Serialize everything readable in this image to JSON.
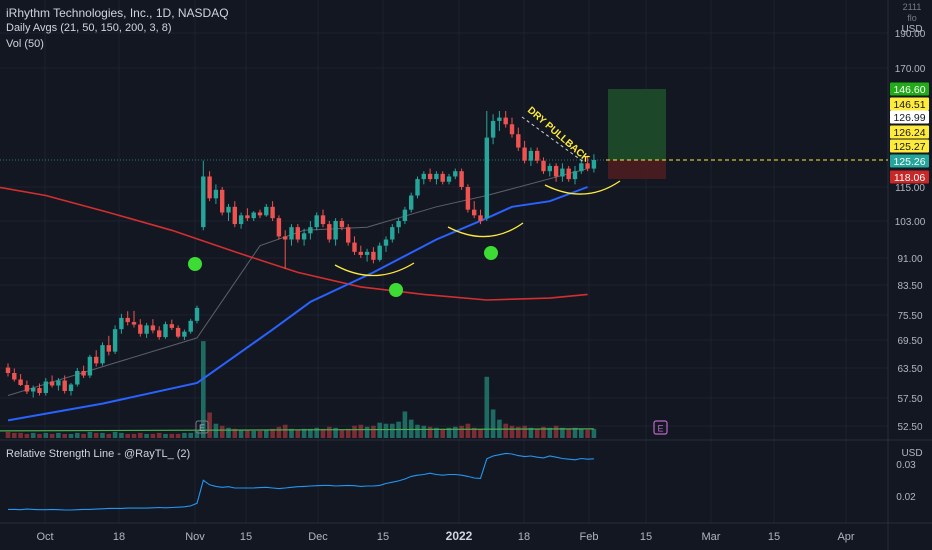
{
  "header": {
    "symbol_line": "iRhythm Technologies, Inc., 1D, NASDAQ",
    "indicator_ma": "Daily Avgs (21, 50, 150, 200, 3, 8)",
    "indicator_vol": "Vol (50)",
    "lower_pane_title": "Relative Strength Line - @RayTL_ (2)"
  },
  "price_axis": {
    "currency_top": [
      "2111 flo",
      "USD"
    ],
    "currency_bottom": "USD",
    "ticks": [
      "190.00",
      "170.00",
      "115.00",
      "103.00",
      "91.00",
      "83.50",
      "75.50",
      "69.50",
      "63.50",
      "57.50",
      "52.50"
    ],
    "lower_ticks": [
      "0.03",
      "0.02"
    ]
  },
  "price_tags": [
    {
      "label": "146.60",
      "bg": "#22ab18",
      "fg": "#ffffff"
    },
    {
      "label": "146.51",
      "bg": "#ffeb3b",
      "fg": "#131722"
    },
    {
      "label": "126.99",
      "bg": "#ffffff",
      "fg": "#131722"
    },
    {
      "label": "126.24",
      "bg": "#ffeb3b",
      "fg": "#131722"
    },
    {
      "label": "125.27",
      "bg": "#ffeb3b",
      "fg": "#131722"
    },
    {
      "label": "125.26",
      "bg": "#26a69a",
      "fg": "#ffffff"
    },
    {
      "label": "118.06",
      "bg": "#c62828",
      "fg": "#ffffff"
    }
  ],
  "time_axis": {
    "labels": [
      {
        "text": "Oct",
        "bold": false
      },
      {
        "text": "18",
        "bold": false
      },
      {
        "text": "Nov",
        "bold": false
      },
      {
        "text": "15",
        "bold": false
      },
      {
        "text": "Dec",
        "bold": false
      },
      {
        "text": "15",
        "bold": false
      },
      {
        "text": "2022",
        "bold": true
      },
      {
        "text": "18",
        "bold": false
      },
      {
        "text": "Feb",
        "bold": false
      },
      {
        "text": "15",
        "bold": false
      },
      {
        "text": "Mar",
        "bold": false
      },
      {
        "text": "15",
        "bold": false
      },
      {
        "text": "Apr",
        "bold": false
      }
    ]
  },
  "annotations": {
    "pullback_text": "DRY PULLBACK",
    "earnings_marker": "E"
  },
  "colors": {
    "background": "#131722",
    "up": "#26a69a",
    "down": "#ef5350",
    "ma50": "#2962ff",
    "ma200": "#d32f2f",
    "ma21": "#5d606b",
    "rs_line": "#2196f3",
    "volume_ma": "#4caf50",
    "marker": "#3ddc35",
    "arc": "#ffeb3b",
    "target_zone": "#1e4a2a",
    "stop_zone": "#4a1c22"
  },
  "chart_data": {
    "type": "candlestick",
    "symbol": "iRhythm Technologies, Inc.",
    "interval": "1D",
    "exchange": "NASDAQ",
    "ylim": [
      50,
      200
    ],
    "xlabels": [
      "Oct",
      "18",
      "Nov",
      "15",
      "Dec",
      "15",
      "2022",
      "18",
      "Feb",
      "15",
      "Mar",
      "15",
      "Apr"
    ],
    "candles": [
      {
        "o": 63.6,
        "h": 64.5,
        "l": 61.8,
        "c": 62.5
      },
      {
        "o": 62.5,
        "h": 63.4,
        "l": 60.8,
        "c": 61.2
      },
      {
        "o": 61.2,
        "h": 62.3,
        "l": 59.9,
        "c": 60.1
      },
      {
        "o": 60.1,
        "h": 61.0,
        "l": 58.3,
        "c": 58.8
      },
      {
        "o": 58.8,
        "h": 60.0,
        "l": 57.6,
        "c": 59.5
      },
      {
        "o": 59.5,
        "h": 60.4,
        "l": 58.0,
        "c": 58.5
      },
      {
        "o": 58.5,
        "h": 61.5,
        "l": 58.0,
        "c": 60.8
      },
      {
        "o": 60.8,
        "h": 62.0,
        "l": 59.6,
        "c": 60.0
      },
      {
        "o": 60.0,
        "h": 61.5,
        "l": 59.0,
        "c": 61.0
      },
      {
        "o": 61.0,
        "h": 62.0,
        "l": 58.4,
        "c": 58.9
      },
      {
        "o": 58.9,
        "h": 60.5,
        "l": 58.0,
        "c": 60.2
      },
      {
        "o": 60.2,
        "h": 63.5,
        "l": 59.8,
        "c": 62.9
      },
      {
        "o": 62.9,
        "h": 64.0,
        "l": 61.5,
        "c": 62.0
      },
      {
        "o": 62.0,
        "h": 66.3,
        "l": 61.5,
        "c": 65.9
      },
      {
        "o": 65.9,
        "h": 67.3,
        "l": 63.8,
        "c": 64.5
      },
      {
        "o": 64.5,
        "h": 69.0,
        "l": 64.0,
        "c": 68.4
      },
      {
        "o": 68.4,
        "h": 70.5,
        "l": 66.2,
        "c": 67.0
      },
      {
        "o": 67.0,
        "h": 73.0,
        "l": 66.5,
        "c": 72.1
      },
      {
        "o": 72.1,
        "h": 75.8,
        "l": 71.0,
        "c": 74.8
      },
      {
        "o": 74.8,
        "h": 76.5,
        "l": 73.0,
        "c": 73.8
      },
      {
        "o": 73.8,
        "h": 76.6,
        "l": 72.5,
        "c": 73.2
      },
      {
        "o": 73.2,
        "h": 74.5,
        "l": 70.3,
        "c": 71.0
      },
      {
        "o": 71.0,
        "h": 73.6,
        "l": 70.0,
        "c": 73.0
      },
      {
        "o": 73.0,
        "h": 74.5,
        "l": 71.1,
        "c": 71.8
      },
      {
        "o": 71.8,
        "h": 72.8,
        "l": 69.6,
        "c": 70.2
      },
      {
        "o": 70.2,
        "h": 73.9,
        "l": 69.8,
        "c": 73.3
      },
      {
        "o": 73.3,
        "h": 74.4,
        "l": 71.9,
        "c": 72.4
      },
      {
        "o": 72.4,
        "h": 73.0,
        "l": 69.9,
        "c": 70.3
      },
      {
        "o": 70.3,
        "h": 72.0,
        "l": 69.5,
        "c": 71.5
      },
      {
        "o": 71.5,
        "h": 74.6,
        "l": 71.0,
        "c": 74.1
      },
      {
        "o": 74.1,
        "h": 78.0,
        "l": 73.5,
        "c": 77.4
      },
      {
        "o": 101.0,
        "h": 125.0,
        "l": 100.0,
        "c": 119.0
      },
      {
        "o": 119.0,
        "h": 121.0,
        "l": 110.0,
        "c": 111.0
      },
      {
        "o": 111.0,
        "h": 116.0,
        "l": 109.0,
        "c": 114.0
      },
      {
        "o": 114.0,
        "h": 115.0,
        "l": 105.0,
        "c": 106.0
      },
      {
        "o": 106.0,
        "h": 109.0,
        "l": 103.0,
        "c": 108.0
      },
      {
        "o": 108.0,
        "h": 110.0,
        "l": 101.0,
        "c": 102.0
      },
      {
        "o": 102.0,
        "h": 106.0,
        "l": 100.5,
        "c": 105.0
      },
      {
        "o": 105.0,
        "h": 107.5,
        "l": 103.0,
        "c": 104.0
      },
      {
        "o": 104.0,
        "h": 106.5,
        "l": 103.0,
        "c": 106.0
      },
      {
        "o": 106.0,
        "h": 107.0,
        "l": 104.0,
        "c": 105.0
      },
      {
        "o": 105.0,
        "h": 109.0,
        "l": 104.5,
        "c": 108.0
      },
      {
        "o": 108.0,
        "h": 110.0,
        "l": 103.0,
        "c": 104.0
      },
      {
        "o": 104.0,
        "h": 105.0,
        "l": 97.0,
        "c": 98.0
      },
      {
        "o": 98.0,
        "h": 100.0,
        "l": 88.0,
        "c": 97.0
      },
      {
        "o": 97.0,
        "h": 102.0,
        "l": 95.0,
        "c": 101.0
      },
      {
        "o": 101.0,
        "h": 102.0,
        "l": 96.0,
        "c": 97.0
      },
      {
        "o": 97.0,
        "h": 100.5,
        "l": 95.0,
        "c": 99.0
      },
      {
        "o": 99.0,
        "h": 103.0,
        "l": 97.0,
        "c": 101.0
      },
      {
        "o": 101.0,
        "h": 106.0,
        "l": 100.0,
        "c": 105.0
      },
      {
        "o": 105.0,
        "h": 107.0,
        "l": 101.0,
        "c": 102.0
      },
      {
        "o": 102.0,
        "h": 103.0,
        "l": 96.0,
        "c": 97.0
      },
      {
        "o": 97.0,
        "h": 104.0,
        "l": 95.0,
        "c": 103.0
      },
      {
        "o": 103.0,
        "h": 104.0,
        "l": 100.0,
        "c": 101.0
      },
      {
        "o": 101.0,
        "h": 102.0,
        "l": 95.0,
        "c": 96.0
      },
      {
        "o": 96.0,
        "h": 98.0,
        "l": 92.0,
        "c": 93.0
      },
      {
        "o": 93.0,
        "h": 95.0,
        "l": 91.0,
        "c": 92.0
      },
      {
        "o": 92.0,
        "h": 94.0,
        "l": 90.0,
        "c": 93.0
      },
      {
        "o": 93.0,
        "h": 94.5,
        "l": 89.5,
        "c": 90.5
      },
      {
        "o": 90.5,
        "h": 96.0,
        "l": 90.0,
        "c": 95.0
      },
      {
        "o": 95.0,
        "h": 98.0,
        "l": 93.0,
        "c": 97.0
      },
      {
        "o": 97.0,
        "h": 102.0,
        "l": 96.0,
        "c": 101.0
      },
      {
        "o": 101.0,
        "h": 104.0,
        "l": 99.0,
        "c": 103.0
      },
      {
        "o": 103.0,
        "h": 108.0,
        "l": 102.0,
        "c": 107.0
      },
      {
        "o": 107.0,
        "h": 113.0,
        "l": 106.0,
        "c": 112.0
      },
      {
        "o": 112.0,
        "h": 119.0,
        "l": 111.0,
        "c": 118.0
      },
      {
        "o": 118.0,
        "h": 121.0,
        "l": 116.0,
        "c": 120.0
      },
      {
        "o": 120.0,
        "h": 122.0,
        "l": 117.0,
        "c": 118.0
      },
      {
        "o": 118.0,
        "h": 121.0,
        "l": 116.0,
        "c": 120.0
      },
      {
        "o": 120.0,
        "h": 121.0,
        "l": 116.0,
        "c": 117.0
      },
      {
        "o": 117.0,
        "h": 120.0,
        "l": 116.0,
        "c": 119.0
      },
      {
        "o": 119.0,
        "h": 122.0,
        "l": 118.0,
        "c": 121.0
      },
      {
        "o": 121.0,
        "h": 122.0,
        "l": 114.0,
        "c": 115.0
      },
      {
        "o": 115.0,
        "h": 116.0,
        "l": 106.0,
        "c": 107.0
      },
      {
        "o": 107.0,
        "h": 110.0,
        "l": 104.0,
        "c": 105.0
      },
      {
        "o": 105.0,
        "h": 107.0,
        "l": 102.0,
        "c": 103.0
      },
      {
        "o": 104.0,
        "h": 140.0,
        "l": 103.0,
        "c": 132.0
      },
      {
        "o": 132.0,
        "h": 139.0,
        "l": 130.0,
        "c": 137.0
      },
      {
        "o": 137.0,
        "h": 140.0,
        "l": 134.0,
        "c": 138.0
      },
      {
        "o": 138.0,
        "h": 140.0,
        "l": 135.0,
        "c": 136.0
      },
      {
        "o": 136.0,
        "h": 138.0,
        "l": 132.0,
        "c": 133.0
      },
      {
        "o": 133.0,
        "h": 135.0,
        "l": 128.0,
        "c": 129.0
      },
      {
        "o": 129.0,
        "h": 131.0,
        "l": 124.0,
        "c": 125.0
      },
      {
        "o": 125.0,
        "h": 129.0,
        "l": 123.0,
        "c": 128.0
      },
      {
        "o": 128.0,
        "h": 129.0,
        "l": 124.0,
        "c": 125.0
      },
      {
        "o": 125.0,
        "h": 126.0,
        "l": 120.0,
        "c": 121.0
      },
      {
        "o": 121.0,
        "h": 124.0,
        "l": 119.0,
        "c": 123.0
      },
      {
        "o": 123.0,
        "h": 124.0,
        "l": 117.0,
        "c": 119.0
      },
      {
        "o": 119.0,
        "h": 124.0,
        "l": 117.0,
        "c": 122.0
      },
      {
        "o": 122.0,
        "h": 123.0,
        "l": 117.0,
        "c": 118.0
      },
      {
        "o": 118.0,
        "h": 123.0,
        "l": 116.0,
        "c": 121.0
      },
      {
        "o": 121.0,
        "h": 125.5,
        "l": 120.0,
        "c": 124.0
      },
      {
        "o": 124.0,
        "h": 126.5,
        "l": 121.0,
        "c": 122.0
      },
      {
        "o": 122.0,
        "h": 127.0,
        "l": 120.5,
        "c": 125.26
      }
    ],
    "volume": [
      6,
      5,
      5,
      4,
      5,
      4,
      5,
      4,
      5,
      4,
      4,
      5,
      4,
      6,
      5,
      5,
      4,
      6,
      5,
      4,
      4,
      5,
      4,
      4,
      5,
      4,
      4,
      4,
      5,
      5,
      7,
      95,
      25,
      14,
      12,
      10,
      9,
      8,
      8,
      7,
      7,
      8,
      9,
      11,
      13,
      9,
      8,
      9,
      9,
      10,
      9,
      11,
      10,
      8,
      9,
      12,
      13,
      11,
      12,
      15,
      14,
      14,
      16,
      26,
      18,
      13,
      12,
      11,
      10,
      9,
      10,
      11,
      12,
      14,
      10,
      9,
      60,
      28,
      18,
      14,
      12,
      11,
      12,
      10,
      9,
      11,
      10,
      12,
      10,
      9,
      10,
      9,
      8,
      9
    ],
    "volume_ma": 7,
    "moving_averages": {
      "ma21": {
        "x": [
          0,
          30,
          40,
          47,
          57,
          68,
          76,
          92
        ],
        "y": [
          58,
          70,
          95,
          100,
          101,
          108,
          112,
          122
        ]
      },
      "ma50": {
        "x": [
          0,
          15,
          30,
          36,
          42,
          48,
          58,
          68,
          76,
          80,
          86,
          92
        ],
        "y": [
          53.5,
          56.5,
          60.5,
          66,
          72,
          79,
          87,
          97,
          104,
          108,
          110,
          115
        ]
      },
      "ma200": {
        "x": [
          -4,
          6,
          16,
          26,
          36,
          46,
          56,
          66,
          76,
          86,
          92
        ],
        "y": [
          116,
          112,
          106,
          100,
          93,
          87,
          83,
          81,
          79.5,
          80,
          81
        ]
      }
    },
    "trade_setup": {
      "entry": 125.26,
      "target": 146.6,
      "stop": 118.06
    },
    "rs_line": {
      "ylim": [
        0.005,
        0.04
      ],
      "values": [
        0.0155,
        0.0155,
        0.0154,
        0.0156,
        0.0155,
        0.0154,
        0.0154,
        0.0155,
        0.0154,
        0.0153,
        0.0153,
        0.0154,
        0.0155,
        0.0155,
        0.0156,
        0.0157,
        0.0158,
        0.0158,
        0.0158,
        0.0159,
        0.0159,
        0.0159,
        0.0159,
        0.016,
        0.0161,
        0.016,
        0.0161,
        0.0162,
        0.0163,
        0.0166,
        0.0174,
        0.0246,
        0.0232,
        0.0227,
        0.0224,
        0.0226,
        0.0222,
        0.0222,
        0.0222,
        0.0222,
        0.0223,
        0.0224,
        0.0222,
        0.022,
        0.0222,
        0.0224,
        0.0226,
        0.0227,
        0.0228,
        0.0229,
        0.023,
        0.023,
        0.0228,
        0.0229,
        0.023,
        0.0229,
        0.0227,
        0.0228,
        0.0228,
        0.023,
        0.0236,
        0.024,
        0.0244,
        0.025,
        0.0258,
        0.0262,
        0.0264,
        0.0268,
        0.0264,
        0.0262,
        0.0264,
        0.0264,
        0.0262,
        0.0258,
        0.0253,
        0.0252,
        0.0313,
        0.0322,
        0.0326,
        0.033,
        0.0328,
        0.0323,
        0.032,
        0.0322,
        0.0318,
        0.0316,
        0.0322,
        0.0318,
        0.0314,
        0.0312,
        0.031,
        0.0314,
        0.0312,
        0.0313
      ]
    }
  }
}
